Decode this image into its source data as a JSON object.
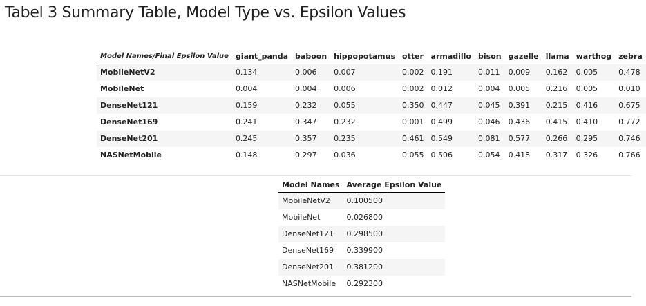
{
  "page": {
    "title": "Tabel 3 Summary Table, Model Type vs. Epsilon Values"
  },
  "epsilon_table": {
    "corner_label": "Model Names/Final Epsilon Value",
    "columns": [
      "giant_panda",
      "baboon",
      "hippopotamus",
      "otter",
      "armadillo",
      "bison",
      "gazelle",
      "llama",
      "warthog",
      "zebra"
    ],
    "rows": [
      {
        "model": "MobileNetV2",
        "values": [
          "0.134",
          "0.006",
          "0.007",
          "0.002",
          "0.191",
          "0.011",
          "0.009",
          "0.162",
          "0.005",
          "0.478"
        ]
      },
      {
        "model": "MobileNet",
        "values": [
          "0.004",
          "0.004",
          "0.006",
          "0.002",
          "0.012",
          "0.004",
          "0.005",
          "0.216",
          "0.005",
          "0.010"
        ]
      },
      {
        "model": "DenseNet121",
        "values": [
          "0.159",
          "0.232",
          "0.055",
          "0.350",
          "0.447",
          "0.045",
          "0.391",
          "0.215",
          "0.416",
          "0.675"
        ]
      },
      {
        "model": "DenseNet169",
        "values": [
          "0.241",
          "0.347",
          "0.232",
          "0.001",
          "0.499",
          "0.046",
          "0.436",
          "0.415",
          "0.410",
          "0.772"
        ]
      },
      {
        "model": "DenseNet201",
        "values": [
          "0.245",
          "0.357",
          "0.235",
          "0.461",
          "0.549",
          "0.081",
          "0.577",
          "0.266",
          "0.295",
          "0.746"
        ]
      },
      {
        "model": "NASNetMobile",
        "values": [
          "0.148",
          "0.297",
          "0.036",
          "0.055",
          "0.506",
          "0.054",
          "0.418",
          "0.317",
          "0.326",
          "0.766"
        ]
      }
    ]
  },
  "average_table": {
    "columns": [
      "Model Names",
      "Average Epsilon Value"
    ],
    "rows": [
      [
        "MobileNetV2",
        "0.100500"
      ],
      [
        "MobileNet",
        "0.026800"
      ],
      [
        "DenseNet121",
        "0.298500"
      ],
      [
        "DenseNet169",
        "0.339900"
      ],
      [
        "DenseNet201",
        "0.381200"
      ],
      [
        "NASNetMobile",
        "0.292300"
      ]
    ]
  }
}
